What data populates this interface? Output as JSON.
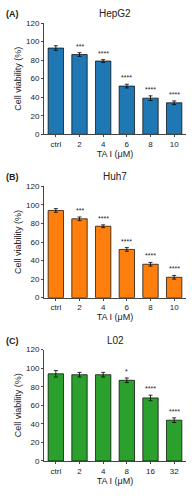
{
  "chart_data": [
    {
      "type": "bar",
      "title": "HepG2",
      "annotations": [
        "(A)"
      ],
      "categories": [
        "ctrl",
        "2",
        "4",
        "6",
        "8",
        "10"
      ],
      "x_label": "TA I (μM)",
      "y_label": "Cell viability (%)",
      "values": [
        93,
        86,
        79,
        52,
        39,
        34
      ],
      "errors": [
        2.5,
        2.0,
        1.5,
        2.0,
        2.5,
        2.0
      ],
      "significance": [
        null,
        "***",
        "****",
        "****",
        "****",
        "****"
      ],
      "ylim": [
        0,
        120
      ],
      "yticks": [
        0,
        20,
        40,
        60,
        80,
        100,
        120
      ],
      "grid": false
    },
    {
      "type": "bar",
      "title": "Huh7",
      "annotations": [
        "(B)"
      ],
      "categories": [
        "ctrl",
        "2",
        "4",
        "6",
        "8",
        "10"
      ],
      "x_label": "TA I (μM)",
      "y_label": "Cell viability (%)",
      "values": [
        94,
        85,
        77,
        52,
        36,
        22
      ],
      "errors": [
        2.0,
        2.0,
        1.5,
        2.0,
        2.0,
        2.0
      ],
      "significance": [
        null,
        "***",
        "****",
        "****",
        "****",
        "****"
      ],
      "ylim": [
        0,
        120
      ],
      "yticks": [
        0,
        20,
        40,
        60,
        80,
        100,
        120
      ],
      "grid": false
    },
    {
      "type": "bar",
      "title": "L02",
      "annotations": [
        "(C)"
      ],
      "categories": [
        "ctrl",
        "2",
        "4",
        "8",
        "16",
        "32"
      ],
      "x_label": "TA I (μM)",
      "y_label": "Cell viability (%)",
      "values": [
        94,
        93,
        93,
        87,
        68,
        44
      ],
      "errors": [
        3.5,
        2.5,
        2.5,
        2.5,
        3.0,
        2.5
      ],
      "significance": [
        null,
        null,
        null,
        "*",
        "****",
        "****"
      ],
      "ylim": [
        0,
        120
      ],
      "yticks": [
        0,
        20,
        40,
        60,
        80,
        100,
        120
      ],
      "grid": false
    }
  ]
}
